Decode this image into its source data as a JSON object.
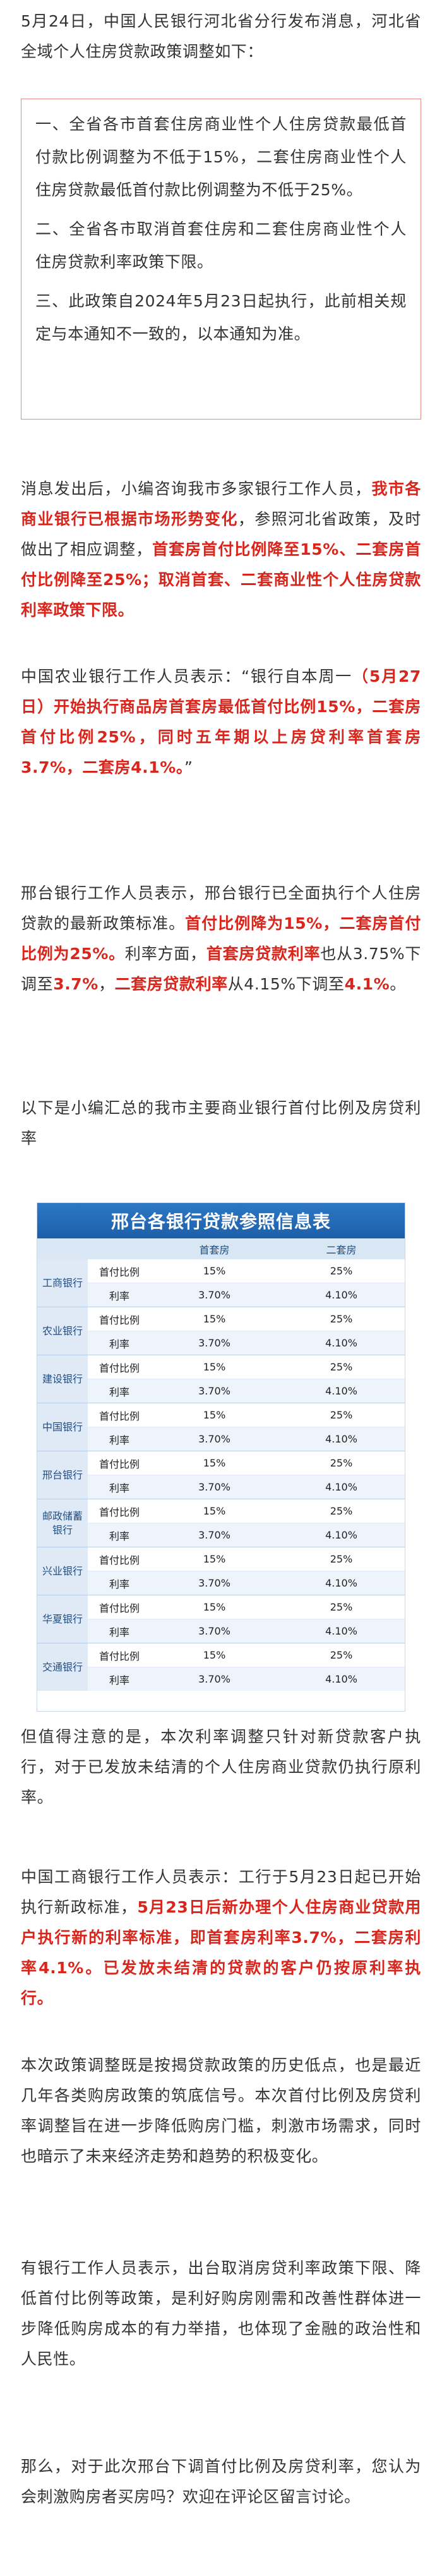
{
  "intro": {
    "paragraph": "5月24日，中国人民银行河北省分行发布消息，河北省全域个人住房贷款政策调整如下："
  },
  "notice": {
    "items": [
      "一、全省各市首套住房商业性个人住房贷款最低首付款比例调整为不低于15%，二套住房商业性个人住房贷款最低首付款比例调整为不低于25%。",
      "二、全省各市取消首套住房和二套住房商业性个人住房贷款利率政策下限。",
      "三、此政策自2024年5月23日起执行，此前相关规定与本通知不一致的，以本通知为准。"
    ]
  },
  "p2": {
    "a": "消息发出后，小编咨询我市多家银行工作人员，",
    "b": "我市各商业银行已根据市场形势变化",
    "c": "，参照河北省政策，及时做出了相应调整，",
    "d": "首套房首付比例降至15%、二套房首付比例降至25%；取消首套、二套商业性个人住房贷款利率政策下限。"
  },
  "p3": {
    "a": "中国农业银行工作人员表示：“银行自本周一",
    "b": "（5月27日）开始执行商品房首套房最低首付比例15%，二套房首付比例25%，同时五年期以上房贷利率首套房3.7%，二套房4.1%。",
    "c": "”"
  },
  "p4": {
    "a": "邢台银行工作人员表示，邢台银行已全面执行个人住房贷款的最新政策标准。",
    "b": "首付比例降为15%，二套房首付比例为25%。",
    "c": "利率方面，",
    "d": "首套房贷款利率",
    "e": "也从3.75%下调至",
    "f": "3.7%",
    "g": "，",
    "h": "二套房贷款利率",
    "i": "从4.15%下调至",
    "j": "4.1%",
    "k": "。"
  },
  "p5": {
    "text": "以下是小编汇总的我市主要商业银行首付比例及房贷利率"
  },
  "table": {
    "title": "邢台各银行贷款参照信息表",
    "col_first": "首套房",
    "col_second": "二套房",
    "row_down": "首付比例",
    "row_rate": "利率",
    "banks": [
      {
        "name": "工商银行",
        "down_first": "15%",
        "down_second": "25%",
        "rate_first": "3.70%",
        "rate_second": "4.10%"
      },
      {
        "name": "农业银行",
        "down_first": "15%",
        "down_second": "25%",
        "rate_first": "3.70%",
        "rate_second": "4.10%"
      },
      {
        "name": "建设银行",
        "down_first": "15%",
        "down_second": "25%",
        "rate_first": "3.70%",
        "rate_second": "4.10%"
      },
      {
        "name": "中国银行",
        "down_first": "15%",
        "down_second": "25%",
        "rate_first": "3.70%",
        "rate_second": "4.10%"
      },
      {
        "name": "邢台银行",
        "down_first": "15%",
        "down_second": "25%",
        "rate_first": "3.70%",
        "rate_second": "4.10%"
      },
      {
        "name": "邮政储蓄银行",
        "down_first": "15%",
        "down_second": "25%",
        "rate_first": "3.70%",
        "rate_second": "4.10%"
      },
      {
        "name": "兴业银行",
        "down_first": "15%",
        "down_second": "25%",
        "rate_first": "3.70%",
        "rate_second": "4.10%"
      },
      {
        "name": "华夏银行",
        "down_first": "15%",
        "down_second": "25%",
        "rate_first": "3.70%",
        "rate_second": "4.10%"
      },
      {
        "name": "交通银行",
        "down_first": "15%",
        "down_second": "25%",
        "rate_first": "3.70%",
        "rate_second": "4.10%"
      }
    ]
  },
  "p6": {
    "text": "但值得注意的是，本次利率调整只针对新贷款客户执行，对于已发放未结清的个人住房商业贷款仍执行原利率。"
  },
  "p7": {
    "a": "中国工商银行工作人员表示：工行于5月23日起已开始执行新政标准，",
    "b": "5月23日后新办理个人住房商业贷款用户执行新的利率标准，即首套房利率3.7%，二套房利率4.1%。已发放未结清的贷款的客户仍按原利率执行。"
  },
  "p8": {
    "text": "本次政策调整既是按揭贷款政策的历史低点，也是最近几年各类购房政策的筑底信号。本次首付比例及房贷利率调整旨在进一步降低购房门槛，刺激市场需求，同时也暗示了未来经济走势和趋势的积极变化。"
  },
  "p9": {
    "text": "有银行工作人员表示，出台取消房贷利率政策下限、降低首付比例等政策，是利好购房刚需和改善性群体进一步降低购房成本的有力举措，也体现了金融的政治性和人民性。"
  },
  "p10": {
    "text": "那么，对于此次邢台下调首付比例及房贷利率，您认为会刺激购房者买房吗？欢迎在评论区留言讨论。"
  }
}
